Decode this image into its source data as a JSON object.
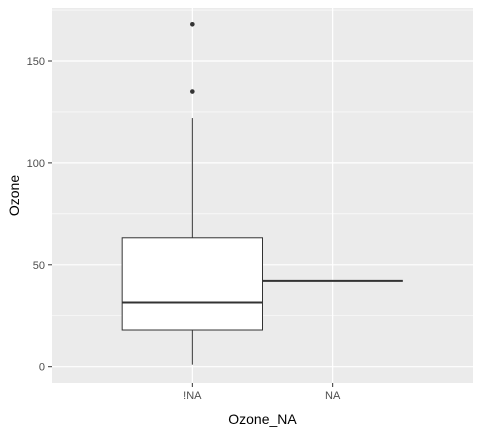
{
  "chart_data": {
    "type": "boxplot",
    "title": "",
    "xlabel": "Ozone_NA",
    "ylabel": "Ozone",
    "ylim": [
      -8,
      176
    ],
    "y_ticks": [
      0,
      50,
      100,
      150
    ],
    "grid": true,
    "panel_background": "#ebebeb",
    "categories": [
      "!NA",
      "NA"
    ],
    "boxes": [
      {
        "category": "!NA",
        "min": 1,
        "q1": 18,
        "median": 31.5,
        "q3": 63.25,
        "max": 122,
        "outliers": [
          135,
          168
        ]
      },
      {
        "category": "NA",
        "min": 42.1,
        "q1": 42.1,
        "median": 42.1,
        "q3": 42.1,
        "max": 42.1,
        "outliers": []
      }
    ]
  }
}
